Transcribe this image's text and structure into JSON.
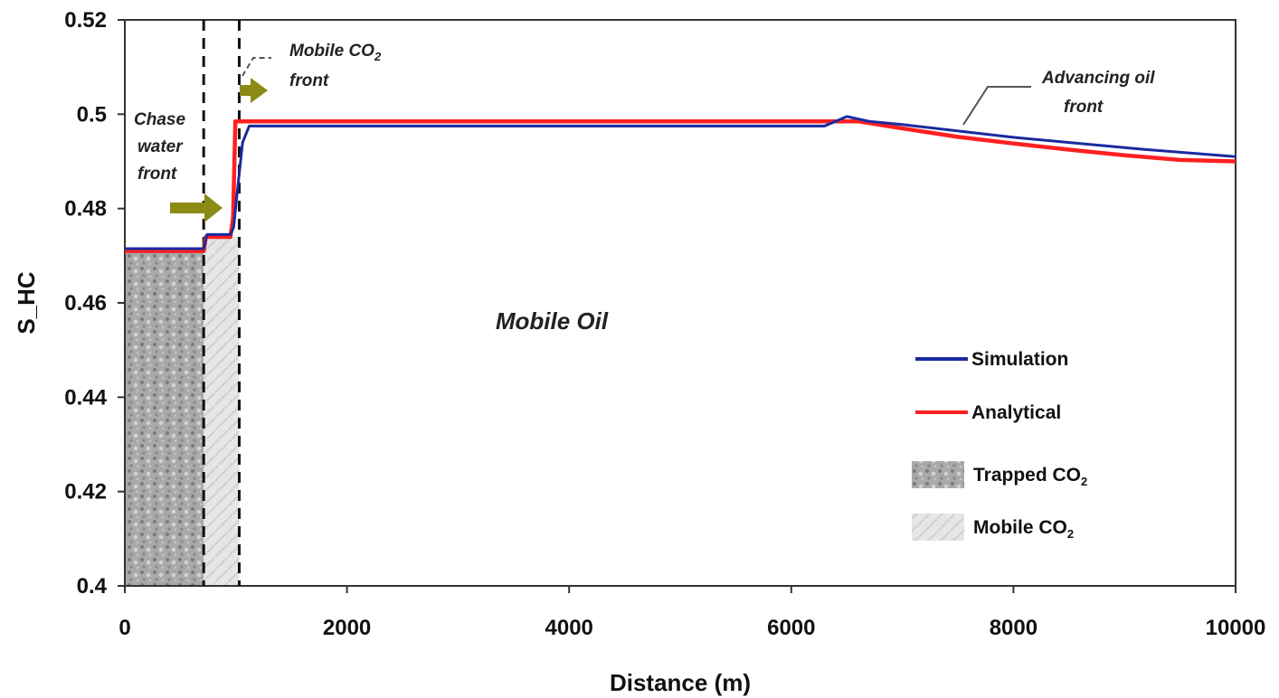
{
  "chart_data": {
    "type": "line",
    "title": "",
    "xlabel": "Distance (m)",
    "ylabel": "S_HC",
    "xlim": [
      0,
      10000
    ],
    "ylim": [
      0.4,
      0.52
    ],
    "x_ticks": [
      "0",
      "2000",
      "4000",
      "6000",
      "8000",
      "10000"
    ],
    "y_ticks": [
      "0.4",
      "0.42",
      "0.44",
      "0.46",
      "0.48",
      "0.5",
      "0.52"
    ],
    "x_tick_values": [
      0,
      2000,
      4000,
      6000,
      8000,
      10000
    ],
    "y_tick_values": [
      0.4,
      0.42,
      0.44,
      0.46,
      0.48,
      0.5,
      0.52
    ],
    "grid": false,
    "legend_position": "right",
    "series": [
      {
        "name": "Simulation",
        "color": "#1a2aa0",
        "x": [
          0,
          710,
          740,
          950,
          980,
          1010,
          1060,
          1120,
          6300,
          6500,
          6700,
          7000,
          7600,
          8000,
          8600,
          9200,
          10000
        ],
        "y": [
          0.4715,
          0.4715,
          0.4745,
          0.4745,
          0.476,
          0.483,
          0.494,
          0.4975,
          0.4975,
          0.4995,
          0.4985,
          0.4978,
          0.4962,
          0.4951,
          0.4938,
          0.4925,
          0.491
        ]
      },
      {
        "name": "Analytical",
        "color": "#ff2020",
        "x": [
          0,
          710,
          730,
          950,
          975,
          995,
          6600,
          7000,
          7500,
          8000,
          8500,
          9000,
          9500,
          10000
        ],
        "y": [
          0.471,
          0.471,
          0.474,
          0.474,
          0.478,
          0.4985,
          0.4985,
          0.497,
          0.4952,
          0.4938,
          0.4925,
          0.4913,
          0.4903,
          0.49
        ]
      }
    ],
    "regions": [
      {
        "name": "Trapped CO2",
        "x_range": [
          0,
          710
        ],
        "y_top": 0.471
      },
      {
        "name": "Mobile CO2",
        "x_range": [
          710,
          1030
        ],
        "y_top": 0.474
      }
    ],
    "fronts_x": [
      710,
      1030
    ],
    "legend": {
      "simulation": "Simulation",
      "analytical": "Analytical",
      "trapped_main": "Trapped CO",
      "trapped_sub": "2",
      "mobile_main": "Mobile CO",
      "mobile_sub": "2"
    },
    "annotations": {
      "mobile_oil": "Mobile Oil",
      "chase_1": "Chase",
      "chase_2": "water",
      "chase_3": "front",
      "mobile_co2_1_main": "Mobile CO",
      "mobile_co2_1_sub": "2",
      "mobile_co2_2": "front",
      "advancing_1": "Advancing oil",
      "advancing_2": "front"
    },
    "colors": {
      "arrow": "#8a8a14",
      "trapped_fill": "#a8a8a8",
      "mobile_fill": "#e4e4e4"
    }
  }
}
